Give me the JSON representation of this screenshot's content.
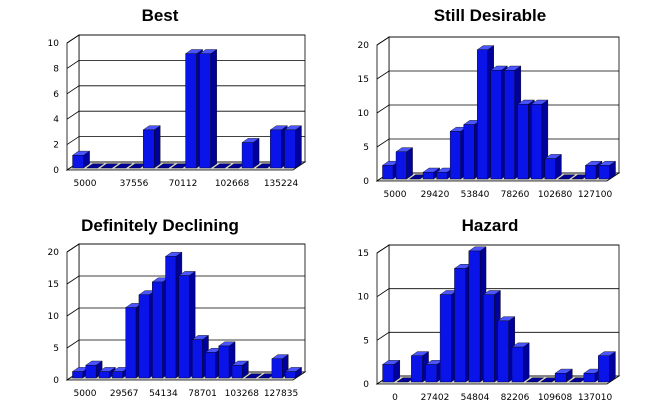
{
  "chart_data": [
    {
      "type": "bar",
      "title": "Best",
      "xlabel": "",
      "ylabel": "",
      "ylim": [
        0,
        10
      ],
      "yticks": [
        0,
        2,
        4,
        6,
        8,
        10
      ],
      "xtick_labels": [
        "5000",
        "37556",
        "70112",
        "102668",
        "135224"
      ],
      "values": [
        1,
        0,
        0,
        0,
        0,
        3,
        0,
        0,
        9,
        9,
        0,
        0,
        2,
        0,
        3,
        3
      ],
      "grid": true
    },
    {
      "type": "bar",
      "title": "Still Desirable",
      "xlabel": "",
      "ylabel": "",
      "ylim": [
        0,
        20
      ],
      "yticks": [
        0,
        5,
        10,
        15,
        20
      ],
      "xtick_labels": [
        "5000",
        "29420",
        "53840",
        "78260",
        "102680",
        "127100"
      ],
      "values": [
        2,
        4,
        0,
        1,
        1,
        7,
        8,
        19,
        16,
        16,
        11,
        11,
        3,
        0,
        0,
        2,
        2
      ],
      "grid": true
    },
    {
      "type": "bar",
      "title": "Definitely Declining",
      "xlabel": "",
      "ylabel": "",
      "ylim": [
        0,
        20
      ],
      "yticks": [
        0,
        5,
        10,
        15,
        20
      ],
      "xtick_labels": [
        "5000",
        "29567",
        "54134",
        "78701",
        "103268",
        "127835"
      ],
      "values": [
        1,
        2,
        1,
        1,
        11,
        13,
        15,
        19,
        16,
        6,
        4,
        5,
        2,
        0,
        0,
        3,
        1
      ],
      "grid": true
    },
    {
      "type": "bar",
      "title": "Hazard",
      "xlabel": "",
      "ylabel": "",
      "ylim": [
        0,
        15
      ],
      "yticks": [
        0,
        5,
        10,
        15
      ],
      "xtick_labels": [
        "0",
        "27402",
        "54804",
        "82206",
        "109608",
        "137010"
      ],
      "values": [
        2,
        0,
        3,
        2,
        10,
        13,
        15,
        10,
        7,
        4,
        0,
        0,
        1,
        0,
        1,
        3
      ],
      "grid": true
    }
  ],
  "colors": {
    "bar_front": "#0a14e8",
    "bar_side": "#00009a",
    "bar_top": "#4a55ff",
    "grid": "#000000",
    "floor": "#d0d0d0"
  }
}
